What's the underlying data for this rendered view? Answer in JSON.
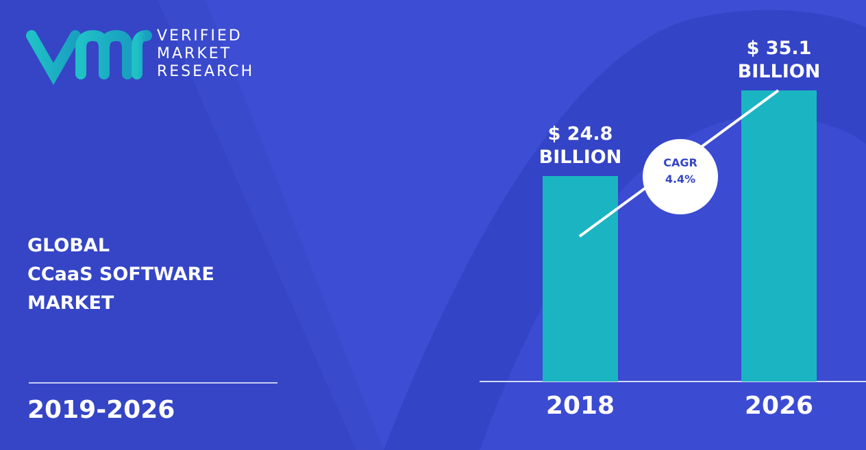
{
  "logo": {
    "lines": [
      "VERIFIED",
      "MARKET",
      "RESEARCH"
    ]
  },
  "chart_data": {
    "type": "bar",
    "title": [
      "GLOBAL",
      "CCaaS SOFTWARE",
      "MARKET"
    ],
    "subtitle": "2019-2026",
    "categories": [
      "2018",
      "2026"
    ],
    "values": [
      24.8,
      35.1
    ],
    "value_labels": [
      "$ 24.8 BILLION",
      "$ 35.1 BILLION"
    ],
    "color": "#1bb4c3",
    "annotation": "CAGR 4.4%"
  }
}
